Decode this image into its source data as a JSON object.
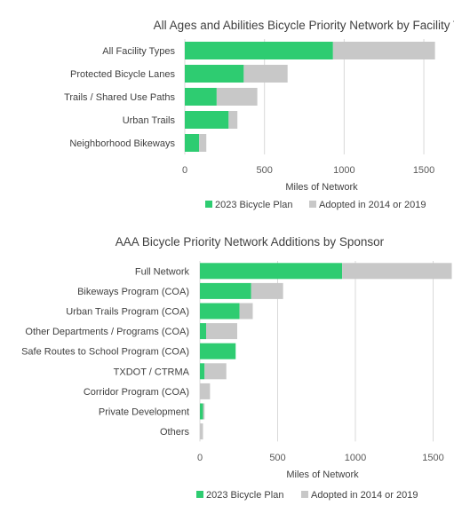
{
  "chart_data": [
    {
      "type": "bar",
      "orientation": "horizontal",
      "stacked": true,
      "title": "All Ages and Abilities Bicycle Priority Network by Facility Type",
      "categories": [
        "All Facility Types",
        "Protected Bicycle Lanes",
        "Trails / Shared Use Paths",
        "Urban Trails",
        "Neighborhood Bikeways"
      ],
      "series": [
        {
          "name": "2023 Bicycle Plan",
          "color": "#2ecc71",
          "values": [
            930,
            370,
            200,
            275,
            90
          ]
        },
        {
          "name": "Adopted in 2014 or 2019",
          "color": "#c8c8c8",
          "values": [
            640,
            275,
            255,
            55,
            45
          ]
        }
      ],
      "xlabel": "Miles of Network",
      "xlim": [
        0,
        1600
      ],
      "xticks": [
        "0",
        "500",
        "1000",
        "1500"
      ],
      "grid": true,
      "legend": "bottom"
    },
    {
      "type": "bar",
      "orientation": "horizontal",
      "stacked": true,
      "title": "AAA Bicycle Priority Network Additions by Sponsor",
      "categories": [
        "Full Network",
        "Bikeways Program (COA)",
        "Urban Trails Program (COA)",
        "Other Departments / Programs (COA)",
        "Safe Routes to School Program (COA)",
        "TXDOT / CTRMA",
        "Corridor Program (COA)",
        "Private Development",
        "Others"
      ],
      "series": [
        {
          "name": "2023 Bicycle Plan",
          "color": "#2ecc71",
          "values": [
            915,
            330,
            255,
            40,
            230,
            30,
            0,
            20,
            0
          ]
        },
        {
          "name": "Adopted in 2014 or 2019",
          "color": "#c8c8c8",
          "values": [
            705,
            205,
            85,
            200,
            0,
            140,
            65,
            10,
            20
          ]
        }
      ],
      "xlabel": "Miles of Network",
      "xlim": [
        0,
        1600
      ],
      "xticks": [
        "0",
        "500",
        "1000",
        "1500"
      ],
      "grid": true,
      "legend": "bottom"
    }
  ]
}
